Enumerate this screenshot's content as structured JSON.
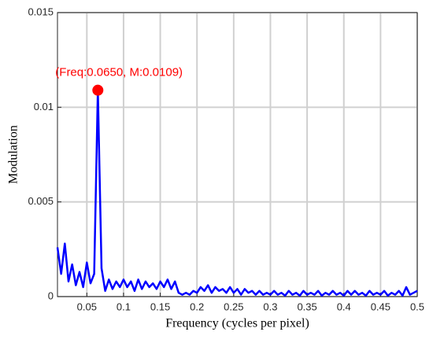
{
  "chart_data": {
    "type": "line",
    "xlabel": "Frequency (cycles per pixel)",
    "ylabel": "Modulation",
    "x": [
      0.01,
      0.015,
      0.02,
      0.025,
      0.03,
      0.035,
      0.04,
      0.045,
      0.05,
      0.055,
      0.06,
      0.065,
      0.07,
      0.075,
      0.08,
      0.085,
      0.09,
      0.095,
      0.1,
      0.105,
      0.11,
      0.115,
      0.12,
      0.125,
      0.13,
      0.135,
      0.14,
      0.145,
      0.15,
      0.155,
      0.16,
      0.165,
      0.17,
      0.175,
      0.18,
      0.185,
      0.19,
      0.195,
      0.2,
      0.205,
      0.21,
      0.215,
      0.22,
      0.225,
      0.23,
      0.235,
      0.24,
      0.245,
      0.25,
      0.255,
      0.26,
      0.265,
      0.27,
      0.275,
      0.28,
      0.285,
      0.29,
      0.295,
      0.3,
      0.305,
      0.31,
      0.315,
      0.32,
      0.325,
      0.33,
      0.335,
      0.34,
      0.345,
      0.35,
      0.355,
      0.36,
      0.365,
      0.37,
      0.375,
      0.38,
      0.385,
      0.39,
      0.395,
      0.4,
      0.405,
      0.41,
      0.415,
      0.42,
      0.425,
      0.43,
      0.435,
      0.44,
      0.445,
      0.45,
      0.455,
      0.46,
      0.465,
      0.47,
      0.475,
      0.48,
      0.485,
      0.49,
      0.495,
      0.5
    ],
    "series": [
      {
        "color": "#0000ff",
        "values": [
          0.0026,
          0.0012,
          0.0028,
          0.0008,
          0.0017,
          0.0006,
          0.0013,
          0.0005,
          0.0018,
          0.0007,
          0.0012,
          0.0109,
          0.0015,
          0.0003,
          0.0009,
          0.0004,
          0.0008,
          0.0005,
          0.0009,
          0.0005,
          0.0008,
          0.0003,
          0.0009,
          0.0004,
          0.0008,
          0.0005,
          0.0007,
          0.0004,
          0.0008,
          0.0005,
          0.0009,
          0.0004,
          0.0008,
          0.0002,
          0.0001,
          0.0002,
          0.0001,
          0.0003,
          0.0002,
          0.0005,
          0.0003,
          0.0006,
          0.0002,
          0.0005,
          0.0003,
          0.0004,
          0.0002,
          0.0005,
          0.0002,
          0.0004,
          0.0001,
          0.0004,
          0.0002,
          0.0003,
          0.0001,
          0.0003,
          0.0001,
          0.0002,
          0.0001,
          0.0003,
          0.0001,
          0.0002,
          5e-05,
          0.0003,
          0.0001,
          0.0002,
          5e-05,
          0.0003,
          0.0001,
          0.0002,
          0.0001,
          0.0003,
          5e-05,
          0.0002,
          0.0001,
          0.0003,
          0.0001,
          0.0002,
          5e-05,
          0.0003,
          0.0001,
          0.0003,
          0.0001,
          0.0002,
          5e-05,
          0.0003,
          0.0001,
          0.0002,
          0.0001,
          0.0003,
          5e-05,
          0.0002,
          0.0001,
          0.0003,
          5e-05,
          0.0005,
          0.0001,
          0.0002,
          0.0003
        ]
      }
    ],
    "peak": {
      "x": 0.065,
      "y": 0.0109,
      "label": "(Freq:0.0650, M:0.0109)",
      "color": "#ff0000"
    },
    "xlim": [
      0.01,
      0.5
    ],
    "ylim": [
      0,
      0.015
    ],
    "xticks": [
      0.05,
      0.1,
      0.15,
      0.2,
      0.25,
      0.3,
      0.35,
      0.4,
      0.45,
      0.5
    ],
    "yticks": [
      0,
      0.005,
      0.01,
      0.015
    ],
    "grid": true
  }
}
